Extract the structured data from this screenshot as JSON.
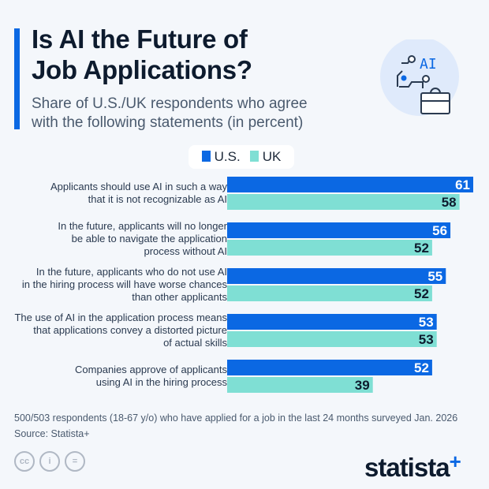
{
  "title_lines": [
    "Is AI the Future of",
    "Job Applications?"
  ],
  "subtitle_lines": [
    "Share of U.S./UK respondents who agree",
    "with the following statements (in percent)"
  ],
  "colors": {
    "us": "#0b68e3",
    "uk": "#7fdfd4",
    "accent": "#0b68e3"
  },
  "icon": "ai-brain-briefcase-icon",
  "chart_data": {
    "type": "bar",
    "orientation": "horizontal",
    "categories": [
      [
        "Applicants should use AI in such a way",
        "that it is not recognizable as AI"
      ],
      [
        "In the future, applicants will no longer",
        "be able to navigate the application",
        "process without AI"
      ],
      [
        "In the future, applicants who do not use AI",
        "in the hiring process will have worse chances",
        "than other applicants"
      ],
      [
        "The use of AI in the application process means",
        "that applications convey a distorted picture",
        "of actual skills"
      ],
      [
        "Companies approve of applicants",
        "using AI in the hiring process"
      ]
    ],
    "series": [
      {
        "name": "U.S.",
        "values": [
          61,
          56,
          55,
          53,
          52
        ]
      },
      {
        "name": "UK",
        "values": [
          58,
          52,
          52,
          53,
          39
        ]
      }
    ],
    "legend": "top",
    "grid": false
  },
  "footer_lines": [
    "500/503 respondents (18-67 y/o) who have applied for a job in the last 24 months surveyed Jan. 2026",
    "Source: Statista+"
  ],
  "license_icons": [
    "cc",
    "by",
    "nd"
  ],
  "logo": {
    "text": "statista",
    "plus": "+"
  }
}
